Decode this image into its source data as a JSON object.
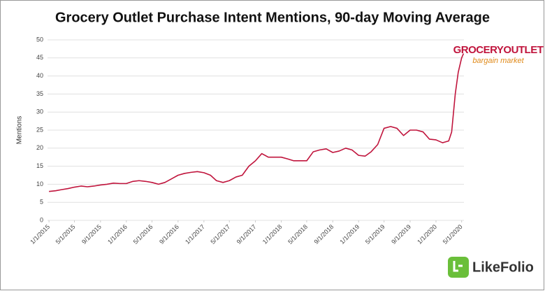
{
  "chart_data": {
    "type": "line",
    "title": "Grocery Outlet Purchase Intent Mentions, 90-day Moving Average",
    "y_label": "Mentions",
    "brand_logo": "GROCERYOUTLET",
    "brand_tagline": "bargain market",
    "source_logo": "LikeFolio",
    "x": [
      "1/1/2015",
      "2/1/2015",
      "3/1/2015",
      "4/1/2015",
      "5/1/2015",
      "6/1/2015",
      "7/1/2015",
      "8/1/2015",
      "9/1/2015",
      "10/1/2015",
      "11/1/2015",
      "12/1/2015",
      "1/1/2016",
      "2/1/2016",
      "3/1/2016",
      "4/1/2016",
      "5/1/2016",
      "6/1/2016",
      "7/1/2016",
      "8/1/2016",
      "9/1/2016",
      "10/1/2016",
      "11/1/2016",
      "12/1/2016",
      "1/1/2017",
      "2/1/2017",
      "3/1/2017",
      "4/1/2017",
      "5/1/2017",
      "6/1/2017",
      "7/1/2017",
      "8/1/2017",
      "9/1/2017",
      "10/1/2017",
      "11/1/2017",
      "12/1/2017",
      "1/1/2018",
      "2/1/2018",
      "3/1/2018",
      "4/1/2018",
      "5/1/2018",
      "6/1/2018",
      "7/1/2018",
      "8/1/2018",
      "9/1/2018",
      "10/1/2018",
      "11/1/2018",
      "12/1/2018",
      "1/1/2019",
      "2/1/2019",
      "3/1/2019",
      "4/1/2019",
      "5/1/2019",
      "6/1/2019",
      "7/1/2019",
      "8/1/2019",
      "9/1/2019",
      "10/1/2019",
      "11/1/2019",
      "12/1/2019",
      "1/1/2020",
      "2/1/2020",
      "3/1/2020",
      "3/15/2020",
      "4/1/2020",
      "4/15/2020",
      "5/1/2020",
      "5/10/2020"
    ],
    "series": [
      {
        "name": "Mentions",
        "color": "#c0143c",
        "values": [
          8,
          8.2,
          8.5,
          8.8,
          9.2,
          9.5,
          9.3,
          9.5,
          9.8,
          10,
          10.3,
          10.2,
          10.2,
          10.8,
          11,
          10.8,
          10.5,
          10,
          10.5,
          11.5,
          12.5,
          13,
          13.3,
          13.5,
          13.2,
          12.5,
          11,
          10.5,
          11,
          12,
          12.5,
          15,
          16.5,
          18.5,
          17.5,
          17.5,
          17.5,
          17,
          16.5,
          16.5,
          16.5,
          19,
          19.5,
          19.8,
          18.8,
          19.2,
          20,
          19.5,
          18,
          17.8,
          19,
          21,
          25.5,
          26,
          25.5,
          23.5,
          25,
          25,
          24.5,
          22.5,
          22.3,
          21.5,
          22,
          24.5,
          35,
          41,
          45,
          46.2
        ]
      }
    ],
    "xlim": [
      "12/25/2014",
      "5/12/2020"
    ],
    "xticks": [
      "1/1/2015",
      "5/1/2015",
      "9/1/2015",
      "1/1/2016",
      "5/1/2016",
      "9/1/2016",
      "1/1/2017",
      "5/1/2017",
      "9/1/2017",
      "1/1/2018",
      "5/1/2018",
      "9/1/2018",
      "1/1/2019",
      "5/1/2019",
      "9/1/2019",
      "1/1/2020",
      "5/1/2020"
    ],
    "ylim": [
      0,
      50
    ],
    "yticks": [
      0,
      5,
      10,
      15,
      20,
      25,
      30,
      35,
      40,
      45,
      50
    ],
    "grid": true
  }
}
